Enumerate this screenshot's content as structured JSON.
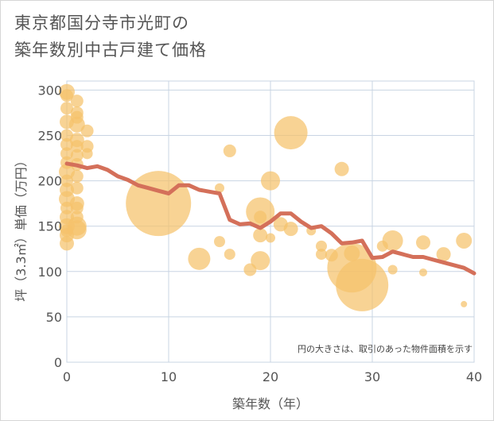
{
  "chart_data": {
    "type": "scatter",
    "title_lines": [
      "東京都国分寺市光町の",
      "築年数別中古戸建て価格"
    ],
    "xlabel": "築年数（年）",
    "ylabel": "坪（3.3㎡）単価（万円）",
    "note": "円の大きさは、取引のあった物件面積を示す",
    "xlim": [
      0,
      40
    ],
    "ylim": [
      0,
      310
    ],
    "x_ticks": [
      0,
      10,
      20,
      30,
      40
    ],
    "y_ticks": [
      0,
      50,
      100,
      150,
      200,
      250,
      300
    ],
    "grid": true,
    "colors": {
      "bubble": "#f5c26b",
      "trend": "#d4705a",
      "grid": "#c8d4e3",
      "text": "#555555"
    },
    "series": [
      {
        "kind": "bubble",
        "points": [
          {
            "x": 0,
            "y": 298,
            "s": 10
          },
          {
            "x": 0,
            "y": 294,
            "s": 8
          },
          {
            "x": 0,
            "y": 280,
            "s": 8
          },
          {
            "x": 0,
            "y": 265,
            "s": 9
          },
          {
            "x": 0,
            "y": 250,
            "s": 8
          },
          {
            "x": 0,
            "y": 240,
            "s": 8
          },
          {
            "x": 0,
            "y": 230,
            "s": 8
          },
          {
            "x": 0,
            "y": 220,
            "s": 8
          },
          {
            "x": 0,
            "y": 210,
            "s": 10
          },
          {
            "x": 0,
            "y": 200,
            "s": 8
          },
          {
            "x": 0,
            "y": 190,
            "s": 9
          },
          {
            "x": 0,
            "y": 180,
            "s": 10
          },
          {
            "x": 0,
            "y": 170,
            "s": 8
          },
          {
            "x": 0,
            "y": 160,
            "s": 9
          },
          {
            "x": 0,
            "y": 150,
            "s": 10
          },
          {
            "x": 0,
            "y": 145,
            "s": 8
          },
          {
            "x": 0,
            "y": 140,
            "s": 9
          },
          {
            "x": 0,
            "y": 131,
            "s": 9
          },
          {
            "x": 1,
            "y": 288,
            "s": 8
          },
          {
            "x": 1,
            "y": 275,
            "s": 8
          },
          {
            "x": 1,
            "y": 270,
            "s": 8
          },
          {
            "x": 1,
            "y": 262,
            "s": 10
          },
          {
            "x": 1,
            "y": 245,
            "s": 9
          },
          {
            "x": 1,
            "y": 238,
            "s": 8
          },
          {
            "x": 1,
            "y": 228,
            "s": 8
          },
          {
            "x": 1,
            "y": 218,
            "s": 8
          },
          {
            "x": 1,
            "y": 205,
            "s": 8
          },
          {
            "x": 1,
            "y": 192,
            "s": 8
          },
          {
            "x": 1,
            "y": 175,
            "s": 9
          },
          {
            "x": 1,
            "y": 170,
            "s": 8
          },
          {
            "x": 1,
            "y": 160,
            "s": 8
          },
          {
            "x": 1,
            "y": 150,
            "s": 12
          },
          {
            "x": 1,
            "y": 146,
            "s": 12
          },
          {
            "x": 2,
            "y": 255,
            "s": 8
          },
          {
            "x": 2,
            "y": 238,
            "s": 8
          },
          {
            "x": 2,
            "y": 230,
            "s": 7
          },
          {
            "x": 9,
            "y": 175,
            "s": 41
          },
          {
            "x": 13,
            "y": 114,
            "s": 14
          },
          {
            "x": 15,
            "y": 192,
            "s": 6
          },
          {
            "x": 15,
            "y": 133,
            "s": 7
          },
          {
            "x": 16,
            "y": 233,
            "s": 8
          },
          {
            "x": 16,
            "y": 119,
            "s": 7
          },
          {
            "x": 18,
            "y": 102,
            "s": 8
          },
          {
            "x": 19,
            "y": 166,
            "s": 18
          },
          {
            "x": 19,
            "y": 160,
            "s": 8
          },
          {
            "x": 19,
            "y": 140,
            "s": 9
          },
          {
            "x": 19,
            "y": 112,
            "s": 12
          },
          {
            "x": 20,
            "y": 200,
            "s": 12
          },
          {
            "x": 20,
            "y": 137,
            "s": 6
          },
          {
            "x": 21,
            "y": 152,
            "s": 9
          },
          {
            "x": 22,
            "y": 253,
            "s": 21
          },
          {
            "x": 22,
            "y": 147,
            "s": 9
          },
          {
            "x": 24,
            "y": 145,
            "s": 6
          },
          {
            "x": 25,
            "y": 128,
            "s": 7
          },
          {
            "x": 25,
            "y": 119,
            "s": 7
          },
          {
            "x": 26,
            "y": 118,
            "s": 8
          },
          {
            "x": 27,
            "y": 213,
            "s": 9
          },
          {
            "x": 28,
            "y": 120,
            "s": 10
          },
          {
            "x": 28,
            "y": 104,
            "s": 31
          },
          {
            "x": 29,
            "y": 85,
            "s": 33
          },
          {
            "x": 31,
            "y": 128,
            "s": 7
          },
          {
            "x": 32,
            "y": 134,
            "s": 13
          },
          {
            "x": 32,
            "y": 102,
            "s": 6
          },
          {
            "x": 35,
            "y": 132,
            "s": 9
          },
          {
            "x": 35,
            "y": 99,
            "s": 5
          },
          {
            "x": 37,
            "y": 119,
            "s": 9
          },
          {
            "x": 39,
            "y": 134,
            "s": 10
          },
          {
            "x": 39,
            "y": 64,
            "s": 4
          }
        ]
      },
      {
        "kind": "line",
        "points": [
          {
            "x": 0,
            "y": 219
          },
          {
            "x": 1,
            "y": 217
          },
          {
            "x": 2,
            "y": 214
          },
          {
            "x": 3,
            "y": 216
          },
          {
            "x": 4,
            "y": 212
          },
          {
            "x": 5,
            "y": 205
          },
          {
            "x": 6,
            "y": 201
          },
          {
            "x": 7,
            "y": 195
          },
          {
            "x": 8,
            "y": 192
          },
          {
            "x": 9,
            "y": 189
          },
          {
            "x": 10,
            "y": 186
          },
          {
            "x": 11,
            "y": 195
          },
          {
            "x": 12,
            "y": 195
          },
          {
            "x": 13,
            "y": 190
          },
          {
            "x": 14,
            "y": 188
          },
          {
            "x": 15,
            "y": 186
          },
          {
            "x": 16,
            "y": 157
          },
          {
            "x": 17,
            "y": 152
          },
          {
            "x": 18,
            "y": 153
          },
          {
            "x": 19,
            "y": 148
          },
          {
            "x": 20,
            "y": 155
          },
          {
            "x": 21,
            "y": 164
          },
          {
            "x": 22,
            "y": 164
          },
          {
            "x": 23,
            "y": 155
          },
          {
            "x": 24,
            "y": 148
          },
          {
            "x": 25,
            "y": 150
          },
          {
            "x": 26,
            "y": 142
          },
          {
            "x": 27,
            "y": 131
          },
          {
            "x": 28,
            "y": 132
          },
          {
            "x": 29,
            "y": 134
          },
          {
            "x": 30,
            "y": 115
          },
          {
            "x": 31,
            "y": 116
          },
          {
            "x": 32,
            "y": 122
          },
          {
            "x": 33,
            "y": 119
          },
          {
            "x": 34,
            "y": 116
          },
          {
            "x": 35,
            "y": 116
          },
          {
            "x": 36,
            "y": 113
          },
          {
            "x": 37,
            "y": 110
          },
          {
            "x": 38,
            "y": 107
          },
          {
            "x": 39,
            "y": 104
          },
          {
            "x": 40,
            "y": 98
          }
        ]
      }
    ]
  }
}
